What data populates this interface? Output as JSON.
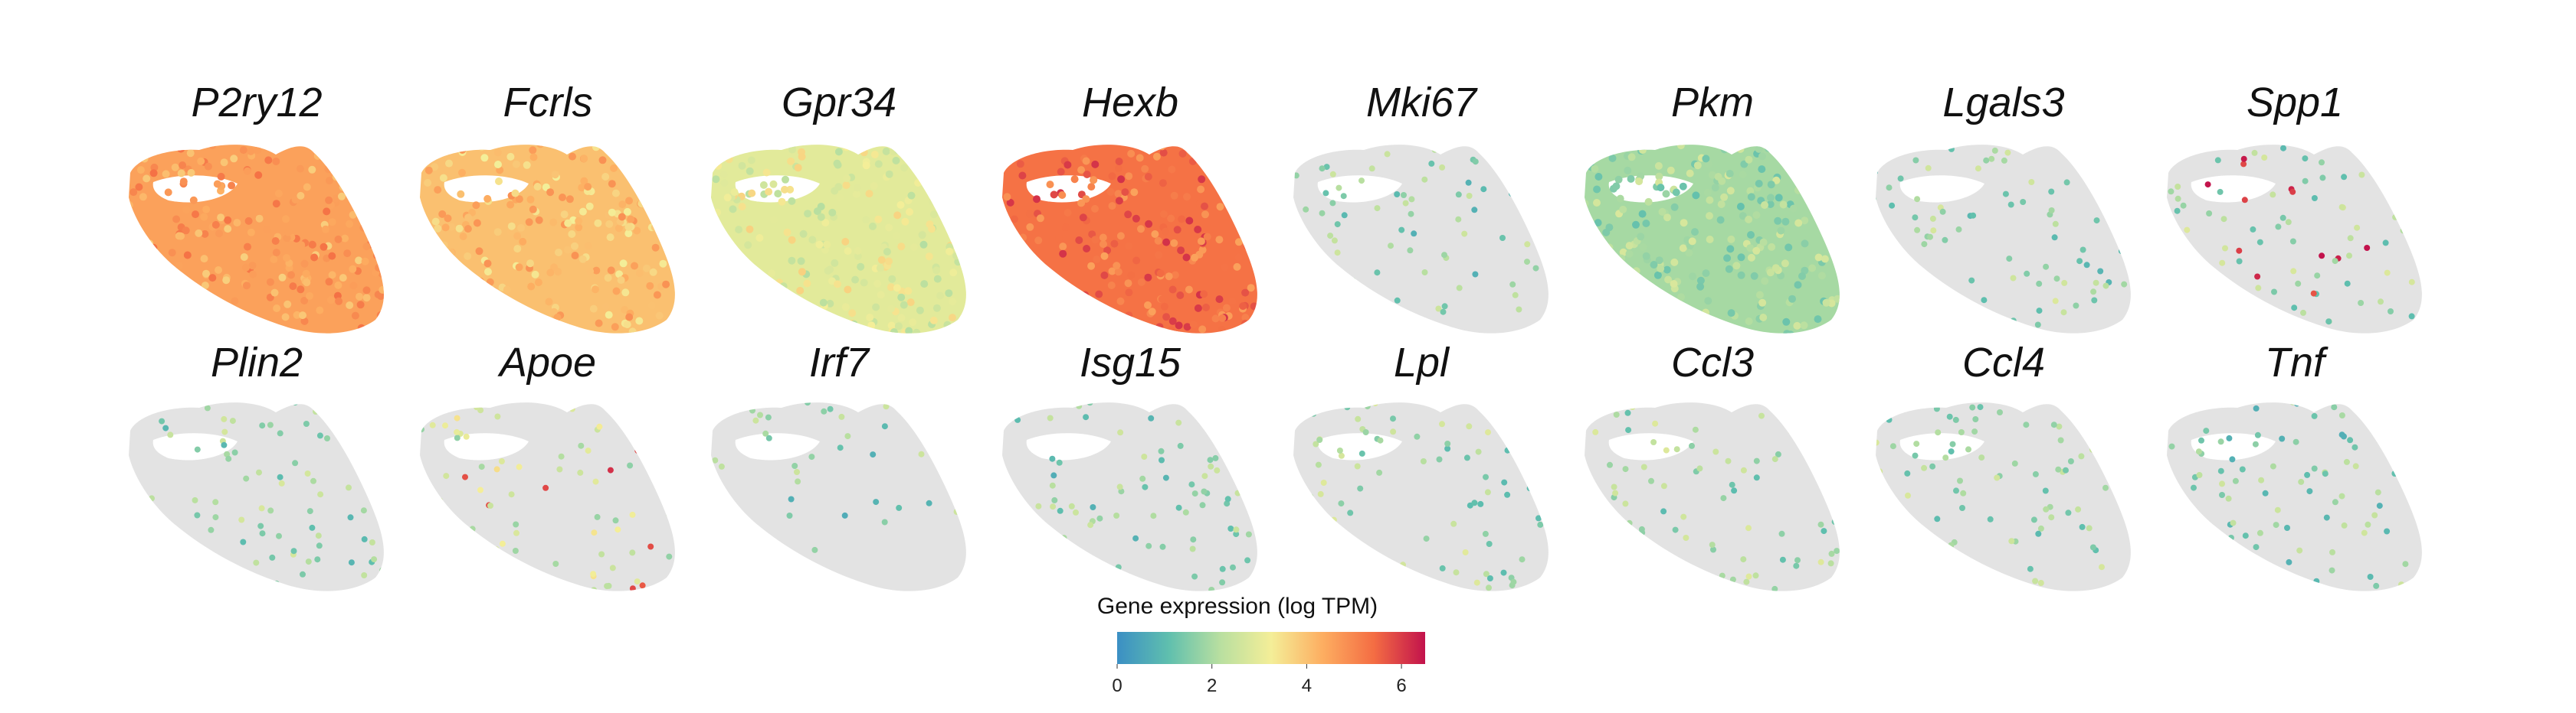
{
  "chart_data": {
    "type": "scatter",
    "title": "",
    "panels": [
      {
        "gene": "P2ry12",
        "expression": "high",
        "color_level": 0.7
      },
      {
        "gene": "Fcrls",
        "expression": "high",
        "color_level": 0.62
      },
      {
        "gene": "Gpr34",
        "expression": "medium",
        "color_level": 0.45
      },
      {
        "gene": "Hexb",
        "expression": "very-high",
        "color_level": 0.82
      },
      {
        "gene": "Mki67",
        "expression": "sparse",
        "color_level": 0.25
      },
      {
        "gene": "Pkm",
        "expression": "medium-low",
        "color_level": 0.3
      },
      {
        "gene": "Lgals3",
        "expression": "sparse",
        "color_level": 0.28
      },
      {
        "gene": "Spp1",
        "expression": "sparse-hot",
        "color_level": 0.3
      },
      {
        "gene": "Plin2",
        "expression": "sparse",
        "color_level": 0.28
      },
      {
        "gene": "Apoe",
        "expression": "medium-hot",
        "color_level": 0.4
      },
      {
        "gene": "Irf7",
        "expression": "very-sparse",
        "color_level": 0.25
      },
      {
        "gene": "Isg15",
        "expression": "sparse",
        "color_level": 0.25
      },
      {
        "gene": "Lpl",
        "expression": "sparse",
        "color_level": 0.3
      },
      {
        "gene": "Ccl3",
        "expression": "sparse",
        "color_level": 0.3
      },
      {
        "gene": "Ccl4",
        "expression": "sparse",
        "color_level": 0.3
      },
      {
        "gene": "Tnf",
        "expression": "sparse",
        "color_level": 0.25
      }
    ],
    "legend": {
      "title": "Gene expression (log TPM)",
      "min": 0,
      "max": 6.5,
      "ticks": [
        "0",
        "2",
        "4",
        "6"
      ],
      "tick_values": [
        0,
        2,
        4,
        6
      ],
      "colors": [
        "#3b8fc4",
        "#5fbfae",
        "#b8dfa0",
        "#f4ee98",
        "#fdae61",
        "#f46d43",
        "#c2124c"
      ]
    },
    "background_color": "#e3e3e3"
  }
}
